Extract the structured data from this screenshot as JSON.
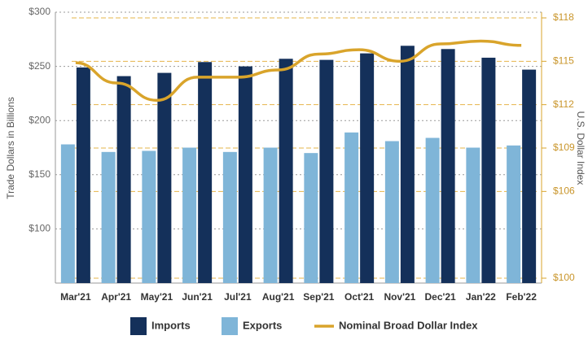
{
  "chart_data": {
    "type": "bar_line",
    "y_label": "Trade Dollars in Billions",
    "y2_label": "U.S. Dollar Index",
    "categories": [
      "Mar'21",
      "Apr'21",
      "May'21",
      "Jun'21",
      "Jul'21",
      "Aug'21",
      "Sep'21",
      "Oct'21",
      "Nov'21",
      "Dec'21",
      "Jan'22",
      "Feb'22"
    ],
    "series": [
      {
        "name": "Imports",
        "color": "#14305a",
        "kind": "bar",
        "values": [
          249,
          241,
          244,
          254,
          250,
          257,
          256,
          262,
          269,
          266,
          258,
          247
        ]
      },
      {
        "name": "Exports",
        "color": "#7fb5d8",
        "kind": "bar",
        "values": [
          178,
          171,
          172,
          175,
          171,
          175,
          170,
          189,
          181,
          184,
          175,
          177
        ]
      },
      {
        "name": "Nominal Broad Dollar Index",
        "color": "#d9a42b",
        "kind": "line",
        "axis": "y2",
        "values": [
          114.9,
          113.5,
          112.3,
          113.9,
          113.9,
          114.4,
          115.5,
          115.8,
          115.0,
          116.2,
          116.4,
          116.1
        ]
      }
    ],
    "ylim": [
      50,
      300
    ],
    "yticks": [
      {
        "value": 100,
        "label": "$100"
      },
      {
        "value": 150,
        "label": "$150"
      },
      {
        "value": 200,
        "label": "$200"
      },
      {
        "value": 250,
        "label": "$250"
      },
      {
        "value": 300,
        "label": "$300"
      }
    ],
    "y2lim": [
      100,
      118
    ],
    "y2ticks": [
      {
        "value": 100,
        "label": "$100"
      },
      {
        "value": 106,
        "label": "$106"
      },
      {
        "value": 109,
        "label": "$109"
      },
      {
        "value": 112,
        "label": "$112"
      },
      {
        "value": 115,
        "label": "$115"
      },
      {
        "value": 118,
        "label": "$118"
      }
    ],
    "grid": true
  }
}
